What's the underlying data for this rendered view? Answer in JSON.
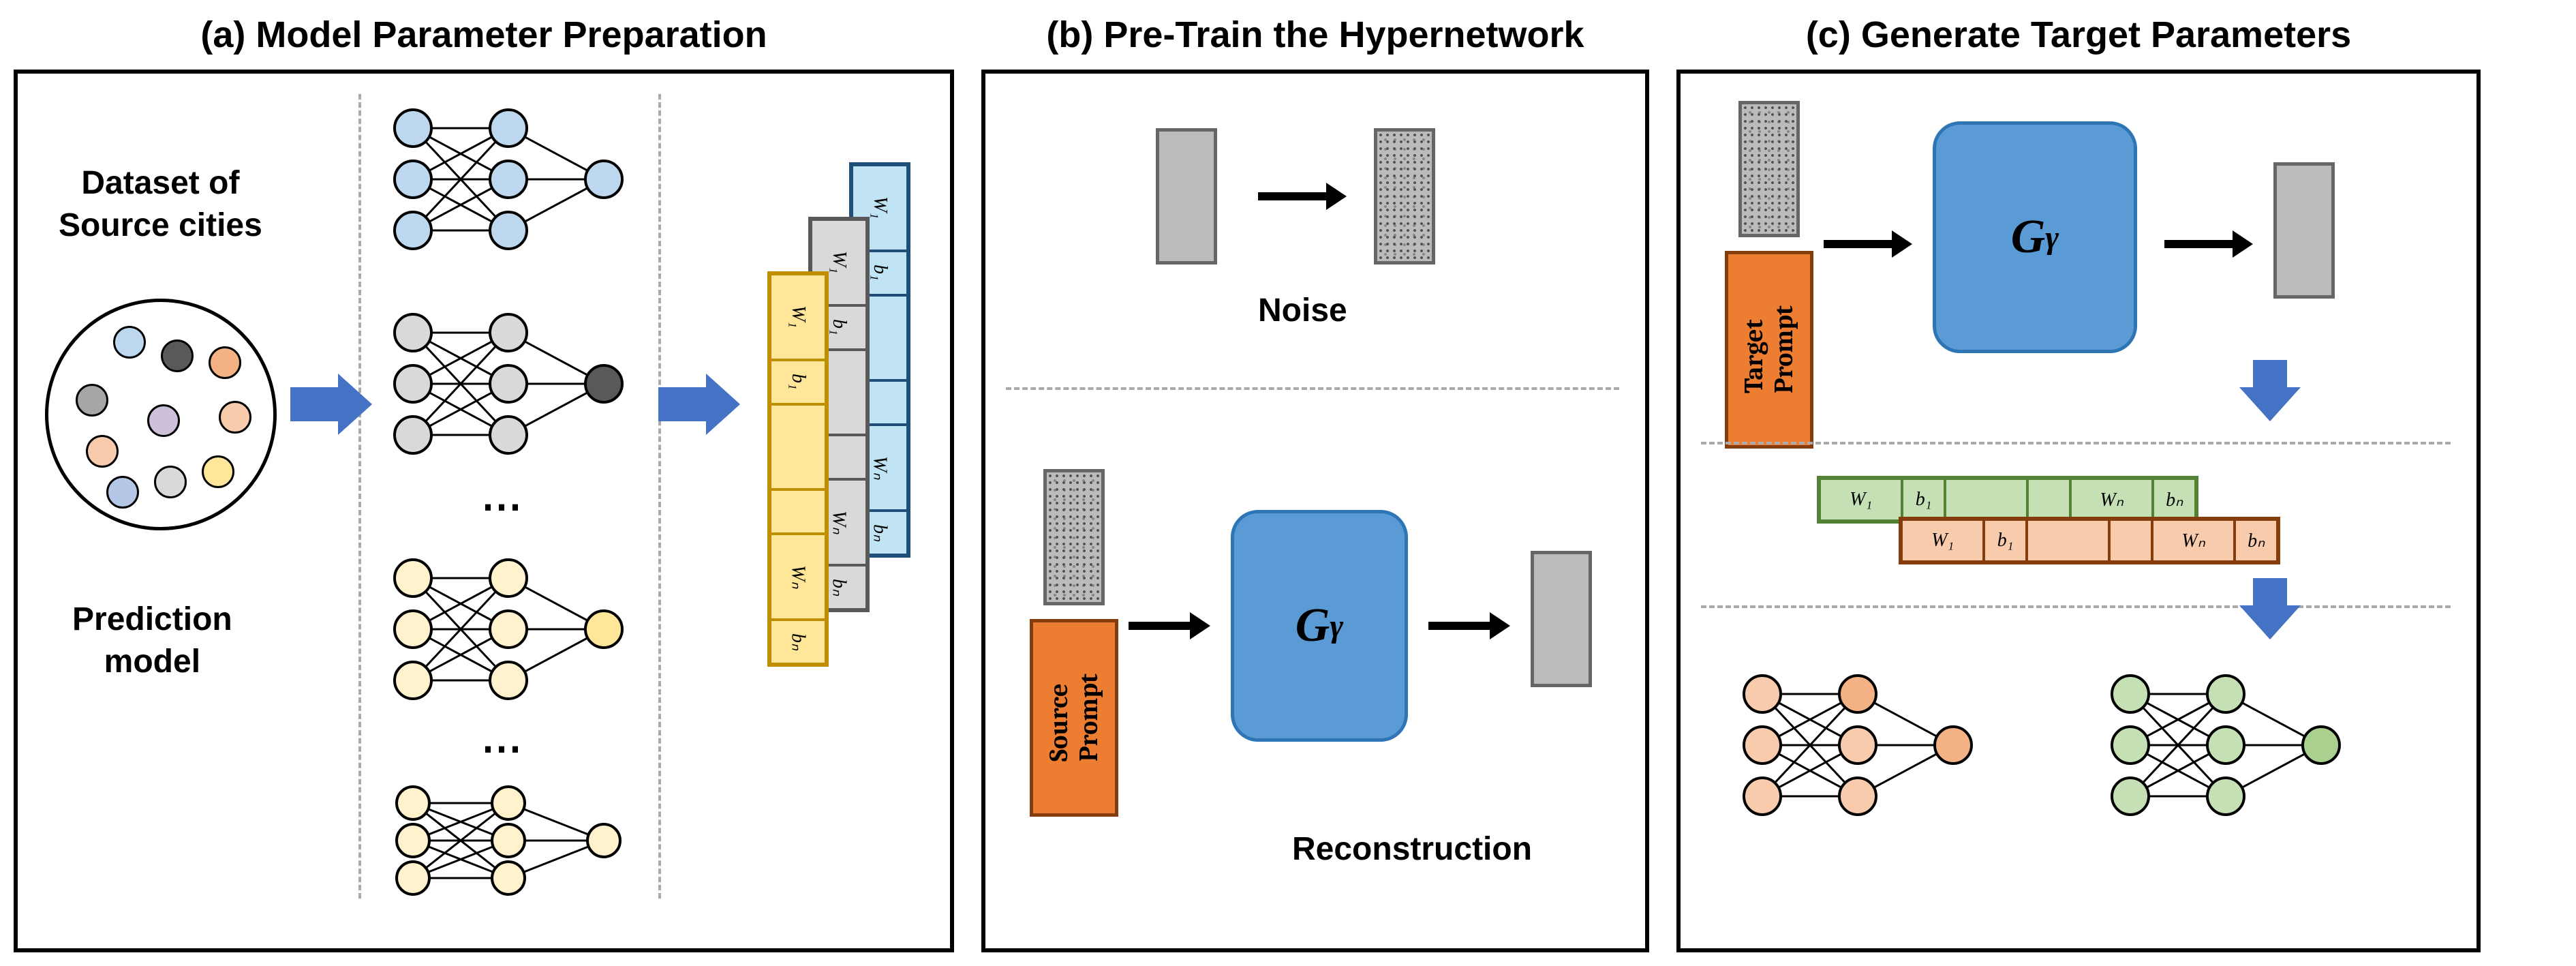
{
  "titles": {
    "a": "(a) Model Parameter Preparation",
    "b": "(b) Pre-Train the Hypernetwork",
    "c": "(c) Generate Target Parameters"
  },
  "labels": {
    "dataset": "Dataset of\nSource cities",
    "prediction": "Prediction\nmodel",
    "noise": "Noise",
    "reconstruction": "Reconstruction",
    "hypernet": "G",
    "hypernet_sub": "γ",
    "source_prompt": "Source\nPrompt",
    "target_prompt": "Target\nPrompt"
  },
  "colors": {
    "blue_light": "#bdd7ee",
    "blue_border": "#2e75b6",
    "gray_light": "#d9d9d9",
    "gray_mid": "#a6a6a6",
    "gray_dark": "#595959",
    "yellow": "#ffe699",
    "yellow_border": "#bf8f00",
    "orange": "#f4b183",
    "orange_border": "#c55a11",
    "pink": "#f8cbad",
    "purple": "#ccc0da",
    "green": "#c5e0b4",
    "green_border": "#548235",
    "tan": "#f8cbad",
    "cyan": "#b4c7e7",
    "box_blue": "#5b9bd5",
    "prompt_bg": "#ed7d31",
    "prompt_border": "#843c0c",
    "strip_cyan_bg": "#c1e4f5",
    "strip_cyan_border": "#1f4e79",
    "strip_gray_bg": "#d9d9d9",
    "strip_gray_border": "#595959",
    "strip_yellow_bg": "#ffe699",
    "strip_yellow_border": "#bf8f00",
    "strip_green_bg": "#c5e0b4",
    "strip_green_border": "#548235",
    "strip_orange_bg": "#f8cbad",
    "strip_orange_border": "#843c0c"
  },
  "param_cells": [
    "W₁",
    "b₁",
    "",
    "",
    "",
    "Wₙ",
    "bₙ"
  ],
  "dots_palette": [
    "#bdd7ee",
    "#a6a6a6",
    "#595959",
    "#f4b183",
    "#f8cbad",
    "#ccc0da",
    "#ffe699",
    "#b4c7e7",
    "#d9d9d9",
    "#f8cbad"
  ]
}
